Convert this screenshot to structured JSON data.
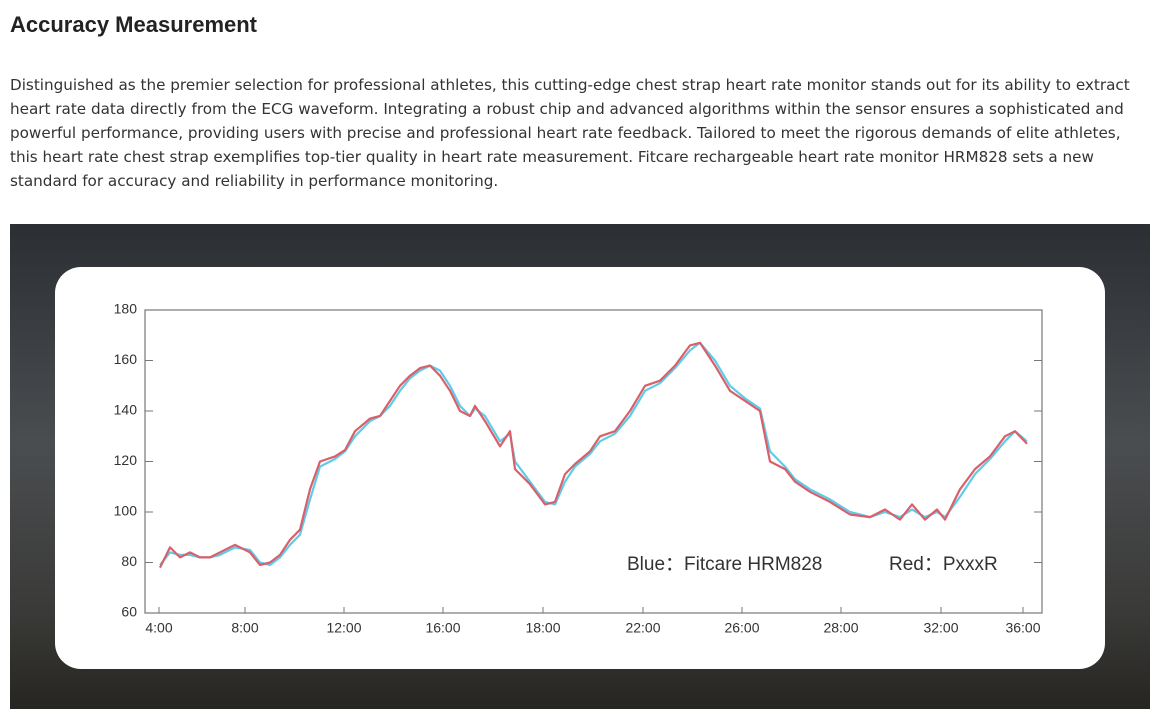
{
  "header": {
    "title": "Accuracy Measurement",
    "text": "Distinguished as the premier selection for professional athletes, this cutting-edge chest strap heart rate monitor stands out for its ability to extract heart rate data directly from the ECG waveform. Integrating a robust chip and advanced algorithms within the sensor ensures a sophisticated and powerful performance, providing users with precise and professional heart rate feedback. Tailored to meet the rigorous demands of elite athletes, this heart rate chest strap exemplifies top-tier quality in heart rate measurement. Fitcare rechargeable heart rate monitor HRM828 sets a new standard for accuracy and reliability in performance monitoring."
  },
  "chart_data": {
    "type": "line",
    "x": [
      1.5,
      2.5,
      3.5,
      4.5,
      5.5,
      6.5,
      7.5,
      9,
      10.5,
      11.5,
      12.5,
      13.5,
      14.5,
      15.5,
      16.5,
      17.5,
      19,
      20,
      21,
      22.5,
      23.5,
      24.5,
      25.5,
      26.5,
      27.5,
      28.5,
      29.5,
      30.5,
      31.5,
      32.5,
      33,
      34,
      35.5,
      36.5,
      37,
      38.5,
      40,
      41,
      42,
      43,
      44.5,
      45.5,
      47,
      48.5,
      50,
      51.5,
      53,
      54.5,
      55.5,
      57,
      58.5,
      60,
      61.5,
      62.5,
      64,
      65,
      66.5,
      68.5,
      70.5,
      72.5,
      74,
      75.5,
      76.7,
      78,
      79.2,
      80,
      81.5,
      83,
      84.5,
      86,
      87,
      88.2
    ],
    "series": [
      {
        "name": "Blue：Fitcare HRM828",
        "color": "#5fcbe8",
        "label_color": "#22a8c4",
        "values": [
          79,
          84,
          83,
          83,
          82,
          82,
          83,
          86,
          85,
          80,
          79,
          82,
          87,
          91,
          105,
          118,
          121,
          124,
          130,
          136,
          138,
          142,
          148,
          153,
          156,
          158,
          156,
          150,
          142,
          138,
          141,
          138,
          128,
          131,
          120,
          112,
          104,
          103,
          112,
          118,
          123,
          128,
          131,
          138,
          148,
          151,
          157,
          164,
          167,
          160,
          150,
          145,
          141,
          124,
          118,
          113,
          109,
          105,
          100,
          98,
          100,
          98,
          101,
          98,
          100,
          98,
          106,
          115,
          121,
          128,
          132,
          128
        ]
      },
      {
        "name": "Red：PxxxR",
        "color": "#d9606a",
        "label_color": "#d9505a",
        "values": [
          78,
          86,
          82,
          84,
          82,
          82,
          84,
          87,
          84,
          79,
          80,
          83,
          89,
          93,
          109,
          120,
          122,
          124.5,
          132,
          137,
          138,
          144,
          150,
          154,
          157,
          158,
          154,
          148,
          140,
          138,
          142,
          136,
          126,
          132,
          117,
          111,
          103,
          104,
          115,
          119,
          124,
          130,
          132,
          140,
          150,
          152,
          158,
          166,
          167,
          158,
          148,
          144,
          140,
          120,
          117,
          112,
          108,
          104,
          99,
          98,
          101,
          97,
          103,
          97,
          101,
          97,
          109,
          117,
          122,
          130,
          132,
          127
        ]
      }
    ],
    "xlim": [
      0,
      89.7
    ],
    "xticks": [
      {
        "value": 1.4,
        "label": "4:00"
      },
      {
        "value": 10,
        "label": "8:00"
      },
      {
        "value": 19.9,
        "label": "12:00"
      },
      {
        "value": 29.8,
        "label": "16:00"
      },
      {
        "value": 39.8,
        "label": "18:00"
      },
      {
        "value": 49.8,
        "label": "22:00"
      },
      {
        "value": 59.7,
        "label": "26:00"
      },
      {
        "value": 69.6,
        "label": "28:00"
      },
      {
        "value": 79.6,
        "label": "32:00"
      },
      {
        "value": 87.8,
        "label": "36:00"
      }
    ],
    "ylim": [
      60,
      180
    ],
    "yticks": [
      60,
      80,
      100,
      120,
      140,
      160,
      180
    ]
  }
}
